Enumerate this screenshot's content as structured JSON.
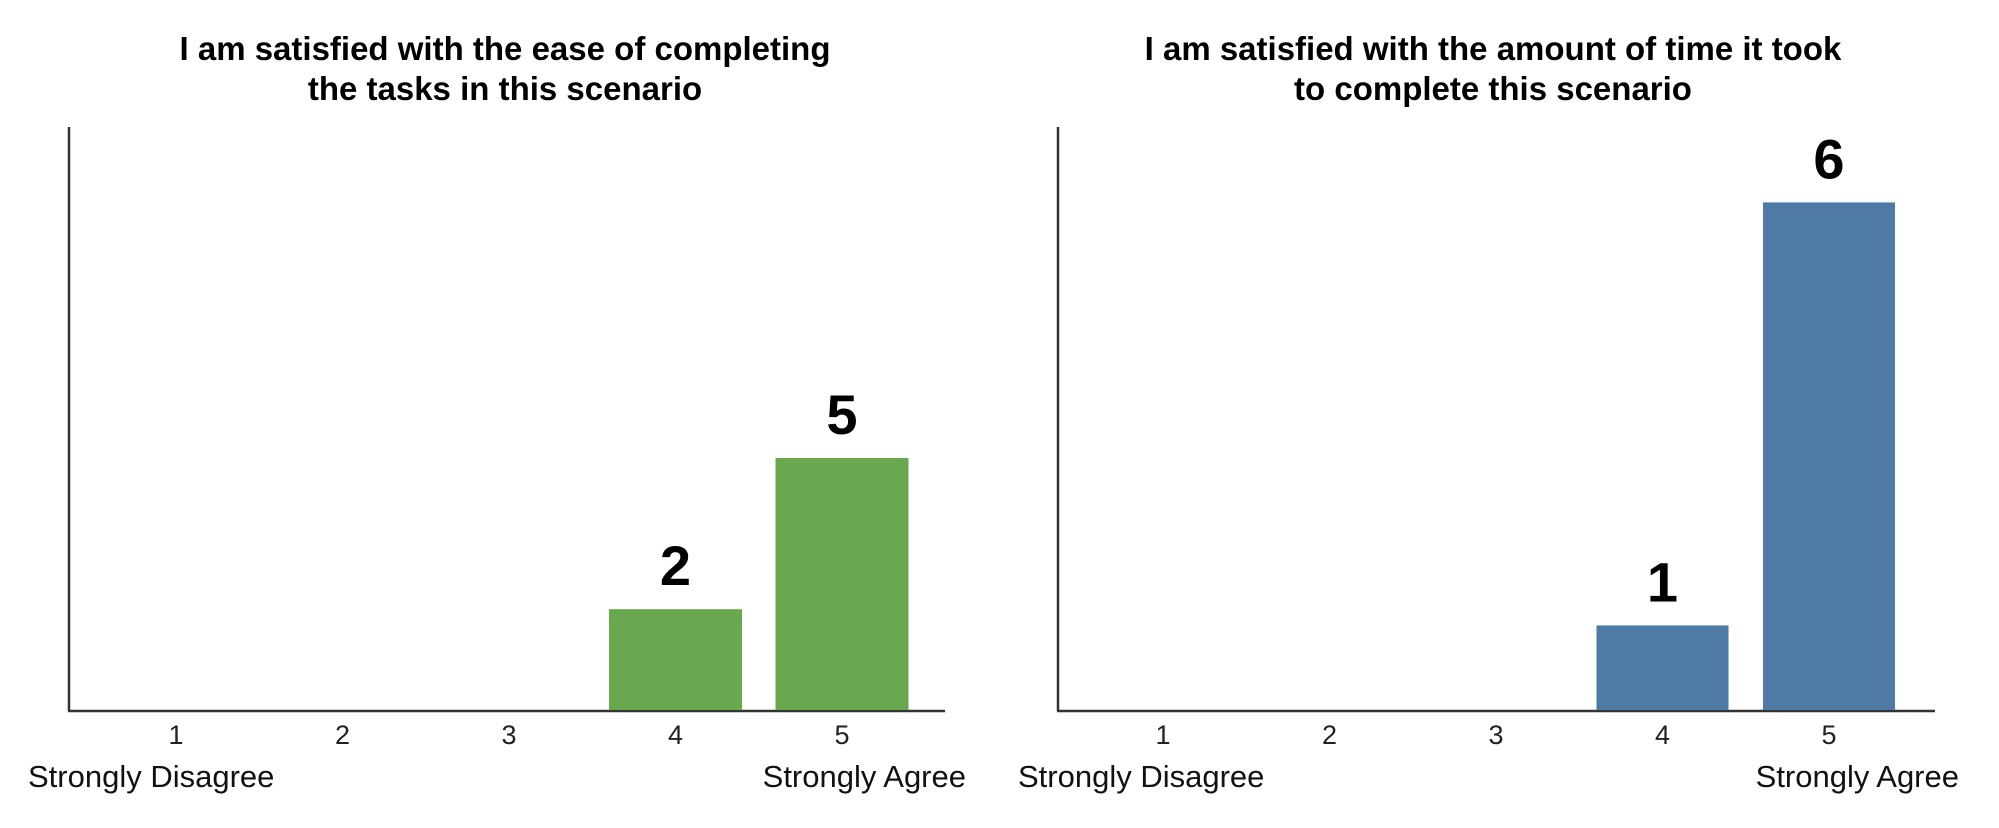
{
  "chart_data": [
    {
      "type": "bar",
      "title_lines": [
        "I am satisfied with the ease of completing",
        "the tasks in this scenario"
      ],
      "categories": [
        "1",
        "2",
        "3",
        "4",
        "5"
      ],
      "values": [
        0,
        0,
        0,
        2,
        5
      ],
      "data_labels": [
        "",
        "",
        "",
        "2",
        "5"
      ],
      "low_label": "Strongly Disagree",
      "high_label": "Strongly Agree",
      "color": "#6aa84f",
      "grid": false
    },
    {
      "type": "bar",
      "title_lines": [
        "I am satisfied with the amount of time it took",
        "to complete this scenario"
      ],
      "categories": [
        "1",
        "2",
        "3",
        "4",
        "5"
      ],
      "values": [
        0,
        0,
        0,
        1,
        6
      ],
      "data_labels": [
        "",
        "",
        "",
        "1",
        "6"
      ],
      "low_label": "Strongly Disagree",
      "high_label": "Strongly Agree",
      "color": "#4e7aa5",
      "grid": false
    }
  ]
}
